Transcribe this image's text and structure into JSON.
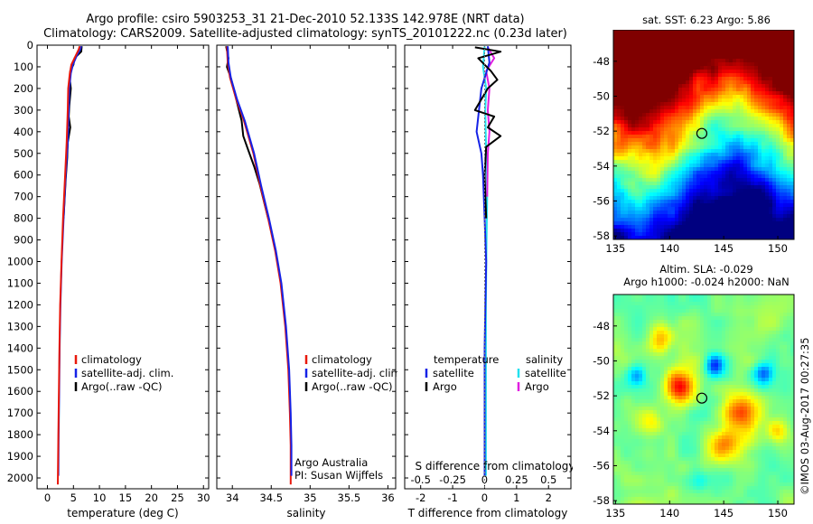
{
  "header": {
    "line1": "Argo profile: csiro 5903253_31 21-Dec-2010 52.133S 142.978E (NRT data)",
    "line2": "Climatology: CARS2009. Satellite-adjusted climatology: synTS_20101222.nc (0.23d later)"
  },
  "depth_ticks": [
    "0",
    "100",
    "200",
    "300",
    "400",
    "500",
    "600",
    "700",
    "800",
    "900",
    "1000",
    "1100",
    "1200",
    "1300",
    "1400",
    "1500",
    "1600",
    "1700",
    "1800",
    "1900",
    "2000"
  ],
  "colors": {
    "climatology": "#e8180c",
    "satellite": "#1522e6",
    "argo": "#000000",
    "sat_salinity": "#22e0ee",
    "argo_salinity": "#e01ee0"
  },
  "chart_data": [
    {
      "type": "line",
      "xlabel": "temperature (deg C)",
      "xticks": [
        "0",
        "5",
        "10",
        "15",
        "20",
        "25",
        "30"
      ],
      "xlim": [
        -2,
        31
      ],
      "ylim": [
        2050,
        0
      ],
      "legend": {
        "placement": "center",
        "labels": [
          "climatology",
          "satellite-adj. clim.",
          "Argo(..raw -QC)"
        ]
      },
      "series": [
        {
          "name": "climatology",
          "color": "#e8180c",
          "points": [
            [
              6.2,
              5
            ],
            [
              6.0,
              20
            ],
            [
              5.4,
              50
            ],
            [
              4.6,
              90
            ],
            [
              4.3,
              130
            ],
            [
              4.0,
              200
            ],
            [
              3.9,
              300
            ],
            [
              3.7,
              450
            ],
            [
              3.4,
              600
            ],
            [
              3.0,
              800
            ],
            [
              2.7,
              1000
            ],
            [
              2.45,
              1200
            ],
            [
              2.3,
              1400
            ],
            [
              2.2,
              1600
            ],
            [
              2.1,
              1800
            ],
            [
              2.0,
              2030
            ]
          ]
        },
        {
          "name": "satellite-adj. clim.",
          "color": "#1522e6",
          "points": [
            [
              6.5,
              5
            ],
            [
              6.3,
              20
            ],
            [
              5.6,
              50
            ],
            [
              4.9,
              90
            ],
            [
              4.5,
              130
            ],
            [
              4.2,
              200
            ],
            [
              4.1,
              300
            ],
            [
              3.9,
              450
            ],
            [
              3.5,
              600
            ],
            [
              3.1,
              800
            ],
            [
              2.75,
              1000
            ],
            [
              2.5,
              1200
            ],
            [
              2.35,
              1400
            ],
            [
              2.25,
              1600
            ],
            [
              2.15,
              1800
            ],
            [
              2.1,
              1990
            ]
          ]
        },
        {
          "name": "Argo(..raw -QC)",
          "color": "#000000",
          "points": [
            [
              6.6,
              5
            ],
            [
              6.5,
              30
            ],
            [
              5.2,
              60
            ],
            [
              5.0,
              90
            ],
            [
              4.4,
              120
            ],
            [
              4.3,
              160
            ],
            [
              4.5,
              200
            ],
            [
              4.2,
              280
            ],
            [
              4.1,
              330
            ],
            [
              4.4,
              380
            ],
            [
              3.9,
              450
            ],
            [
              3.8,
              520
            ],
            [
              3.5,
              620
            ],
            [
              3.1,
              800
            ]
          ]
        }
      ]
    },
    {
      "type": "line",
      "xlabel": "salinity",
      "xticks": [
        "34",
        "34.5",
        "35",
        "35.5",
        "36"
      ],
      "xlim": [
        33.8,
        36.1
      ],
      "ylim": [
        2050,
        0
      ],
      "legend": {
        "placement": "center",
        "labels": [
          "climatology",
          "satellite-adj. clim.",
          "Argo(..raw -QC)"
        ]
      },
      "annotation": [
        "Argo Australia",
        "PI: Susan Wijffels"
      ],
      "series": [
        {
          "name": "climatology",
          "color": "#e8180c",
          "points": [
            [
              33.93,
              5
            ],
            [
              33.94,
              80
            ],
            [
              33.97,
              150
            ],
            [
              34.05,
              250
            ],
            [
              34.15,
              350
            ],
            [
              34.27,
              500
            ],
            [
              34.36,
              650
            ],
            [
              34.46,
              800
            ],
            [
              34.55,
              950
            ],
            [
              34.62,
              1100
            ],
            [
              34.68,
              1300
            ],
            [
              34.72,
              1500
            ],
            [
              34.74,
              1700
            ],
            [
              34.75,
              1850
            ],
            [
              34.75,
              2030
            ]
          ]
        },
        {
          "name": "satellite-adj. clim.",
          "color": "#1522e6",
          "points": [
            [
              33.94,
              5
            ],
            [
              33.95,
              80
            ],
            [
              33.98,
              150
            ],
            [
              34.06,
              250
            ],
            [
              34.16,
              350
            ],
            [
              34.28,
              500
            ],
            [
              34.37,
              650
            ],
            [
              34.47,
              800
            ],
            [
              34.56,
              950
            ],
            [
              34.63,
              1100
            ],
            [
              34.69,
              1300
            ],
            [
              34.73,
              1500
            ],
            [
              34.75,
              1700
            ],
            [
              34.76,
              1850
            ],
            [
              34.76,
              1990
            ]
          ]
        },
        {
          "name": "Argo(..raw -QC)",
          "color": "#000000",
          "points": [
            [
              33.92,
              5
            ],
            [
              33.95,
              60
            ],
            [
              33.93,
              100
            ],
            [
              33.98,
              150
            ],
            [
              34.05,
              250
            ],
            [
              34.12,
              350
            ],
            [
              34.14,
              420
            ],
            [
              34.2,
              480
            ],
            [
              34.28,
              560
            ],
            [
              34.35,
              640
            ],
            [
              34.46,
              800
            ]
          ]
        }
      ]
    },
    {
      "type": "line",
      "xlabel": "T difference from climatology",
      "xlabel2": "S difference from climatology",
      "xticks": [
        "-2",
        "-1",
        "0",
        "1",
        "2"
      ],
      "xticks2": [
        "-0.5",
        "-0.25",
        "0",
        "0.25",
        "0.5"
      ],
      "xlim": [
        -2.5,
        2.7
      ],
      "ylim": [
        2050,
        0
      ],
      "legend": {
        "placement": "center",
        "headers": [
          "temperature",
          "salinity"
        ],
        "labels": [
          "satellite",
          "Argo",
          "satellite",
          "Argo"
        ]
      },
      "series": [
        {
          "name": "satellite",
          "color": "#1522e6",
          "points": [
            [
              0.1,
              5
            ],
            [
              0.15,
              80
            ],
            [
              -0.1,
              200
            ],
            [
              -0.25,
              400
            ],
            [
              -0.1,
              500
            ],
            [
              -0.05,
              600
            ],
            [
              0,
              800
            ],
            [
              0.05,
              1000
            ],
            [
              0,
              1400
            ],
            [
              0,
              1800
            ],
            [
              0,
              1990
            ]
          ]
        },
        {
          "name": "Argo",
          "color": "#000000",
          "points": [
            [
              -0.3,
              10
            ],
            [
              0.5,
              30
            ],
            [
              -0.2,
              60
            ],
            [
              0.2,
              120
            ],
            [
              0.4,
              160
            ],
            [
              0.1,
              200
            ],
            [
              -0.3,
              300
            ],
            [
              0.3,
              330
            ],
            [
              0.1,
              380
            ],
            [
              0.5,
              420
            ],
            [
              0.05,
              470
            ],
            [
              0,
              600
            ],
            [
              0.05,
              800
            ]
          ]
        },
        {
          "name": "satellite",
          "color": "#22e0ee",
          "points": [
            [
              0.0,
              5
            ],
            [
              -0.05,
              100
            ],
            [
              0.05,
              200
            ],
            [
              0.02,
              300
            ],
            [
              0.05,
              500
            ],
            [
              0.08,
              700
            ],
            [
              0.06,
              900
            ],
            [
              0.04,
              1200
            ],
            [
              0.04,
              1600
            ],
            [
              0.04,
              1990
            ]
          ]
        },
        {
          "name": "Argo",
          "color": "#e01ee0",
          "points": [
            [
              0.1,
              10
            ],
            [
              0.3,
              60
            ],
            [
              0.05,
              120
            ],
            [
              0.15,
              200
            ],
            [
              0.1,
              300
            ],
            [
              0.15,
              400
            ],
            [
              0.1,
              500
            ],
            [
              0.08,
              700
            ]
          ]
        }
      ]
    },
    {
      "type": "heatmap",
      "title": "sat. SST: 6.23 Argo: 5.86",
      "xticks": [
        "135",
        "140",
        "145",
        "150"
      ],
      "yticks": [
        "-48",
        "-50",
        "-52",
        "-54",
        "-56",
        "-58"
      ],
      "xlim": [
        134.8,
        151.5
      ],
      "ylim": [
        -58.2,
        -46.2
      ],
      "marker": {
        "lon": 142.978,
        "lat": -52.133
      }
    },
    {
      "type": "heatmap",
      "title": "Altim. SLA: -0.029",
      "subtitle": "Argo h1000: -0.024 h2000: NaN",
      "xticks": [
        "135",
        "140",
        "145",
        "150"
      ],
      "yticks": [
        "-48",
        "-50",
        "-52",
        "-54",
        "-56",
        "-58"
      ],
      "xlim": [
        134.8,
        151.5
      ],
      "ylim": [
        -58.2,
        -46.2
      ],
      "marker": {
        "lon": 142.978,
        "lat": -52.133
      }
    }
  ],
  "watermark": "©IMOS 03-Aug-2017 00:27:35"
}
